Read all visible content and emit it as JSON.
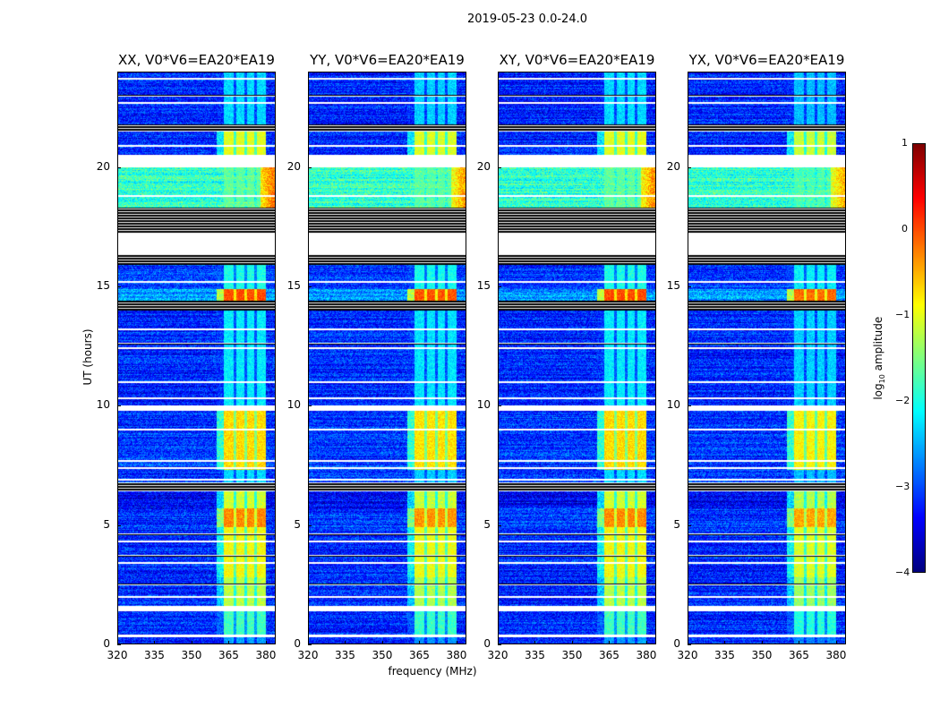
{
  "chart_data": {
    "type": "heatmap",
    "suptitle": "2019-05-23 0.0-24.0",
    "xlabel": "frequency (MHz)",
    "ylabel": "UT (hours)",
    "xlim": [
      320,
      384
    ],
    "ylim": [
      0,
      24
    ],
    "xticks": [
      320,
      335,
      350,
      365,
      380
    ],
    "yticks": [
      0,
      5,
      10,
      15,
      20
    ],
    "panels": [
      {
        "title": "XX, V0*V6=EA20*EA19",
        "band_offset": 0.0,
        "edge_offset": 0.2
      },
      {
        "title": "YY, V0*V6=EA20*EA19",
        "band_offset": -0.05,
        "edge_offset": 0.0
      },
      {
        "title": "XY, V0*V6=EA20*EA19",
        "band_offset": 0.0,
        "edge_offset": 0.1
      },
      {
        "title": "YX, V0*V6=EA20*EA19",
        "band_offset": -0.15,
        "edge_offset": -0.1
      }
    ],
    "rfi_band_mhz": [
      363,
      380
    ],
    "rfi_subband_gaps_mhz": [
      367.5,
      371.8,
      376.0
    ],
    "segments": [
      {
        "t": [
          0,
          0.3
        ],
        "kind": "data",
        "bg": -3.2,
        "band": -2.6
      },
      {
        "t": [
          0.3,
          0.4
        ],
        "kind": "blank"
      },
      {
        "t": [
          0.4,
          1.4
        ],
        "kind": "data",
        "bg": -3.2,
        "band": -1.8
      },
      {
        "t": [
          1.4,
          1.6
        ],
        "kind": "blank"
      },
      {
        "t": [
          1.6,
          2.8
        ],
        "kind": "data",
        "bg": -3.2,
        "band": -1.2
      },
      {
        "t": [
          2.8,
          4.9
        ],
        "kind": "data",
        "bg": -3.2,
        "band": -0.9
      },
      {
        "t": [
          4.9,
          5.7
        ],
        "kind": "data",
        "bg": -3.1,
        "band": -0.3
      },
      {
        "t": [
          5.7,
          6.4
        ],
        "kind": "data",
        "bg": -3.4,
        "band": -1.1
      },
      {
        "t": [
          6.4,
          6.8
        ],
        "kind": "lines"
      },
      {
        "t": [
          6.8,
          7.3
        ],
        "kind": "data",
        "bg": -3.1,
        "band": -2.3
      },
      {
        "t": [
          7.3,
          9.8
        ],
        "kind": "data",
        "bg": -3.1,
        "band": -0.7
      },
      {
        "t": [
          9.8,
          10.0
        ],
        "kind": "blank"
      },
      {
        "t": [
          10.0,
          14.0
        ],
        "kind": "data",
        "bg": -3.2,
        "band": -2.2
      },
      {
        "t": [
          14.0,
          14.4
        ],
        "kind": "lines"
      },
      {
        "t": [
          14.4,
          14.9
        ],
        "kind": "data",
        "bg": -2.6,
        "band": 0.0
      },
      {
        "t": [
          14.9,
          15.9
        ],
        "kind": "data",
        "bg": -3.1,
        "band": -2.0
      },
      {
        "t": [
          15.9,
          16.3
        ],
        "kind": "lines"
      },
      {
        "t": [
          16.3,
          17.2
        ],
        "kind": "blank"
      },
      {
        "t": [
          17.2,
          18.3
        ],
        "kind": "lines"
      },
      {
        "t": [
          18.3,
          20.0
        ],
        "kind": "data",
        "bg": -1.9,
        "band": -1.7,
        "edge": -0.3
      },
      {
        "t": [
          20.0,
          20.5
        ],
        "kind": "blank"
      },
      {
        "t": [
          20.5,
          21.5
        ],
        "kind": "data",
        "bg": -3.2,
        "band": -1.0
      },
      {
        "t": [
          21.5,
          21.8
        ],
        "kind": "lines"
      },
      {
        "t": [
          21.8,
          24.0
        ],
        "kind": "data",
        "bg": -3.2,
        "band": -2.3
      }
    ],
    "flagged_white_lines_hours": [
      2.0,
      3.4,
      4.3,
      6.9,
      7.4,
      7.7,
      9.0,
      10.3,
      11.0,
      12.4,
      13.2,
      15.2,
      18.8,
      20.9,
      22.7,
      23.7
    ],
    "flagged_black_lines_hours": [
      2.5,
      3.7,
      4.6,
      12.6,
      23.0
    ],
    "colorbar": {
      "label_prefix": "log",
      "label_sub": "10",
      "label_suffix": " amplitude",
      "colormap": "jet",
      "range": [
        -4,
        1
      ],
      "ticks": [
        "1",
        "0",
        "−1",
        "−2",
        "−3",
        "−4"
      ],
      "tick_values": [
        1,
        0,
        -1,
        -2,
        -3,
        -4
      ]
    }
  }
}
